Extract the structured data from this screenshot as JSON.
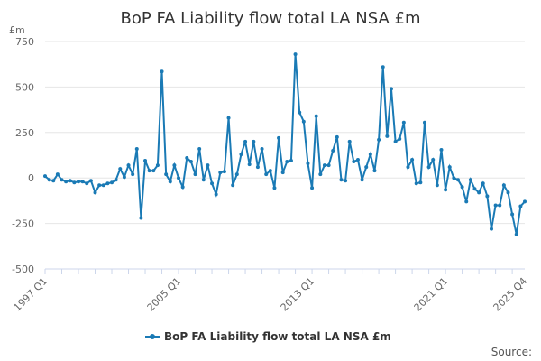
{
  "chart_data": {
    "type": "line",
    "title": "BoP FA Liability flow total LA NSA £m",
    "ylabel": "£m",
    "xlabel": "",
    "ylim": [
      -500,
      750
    ],
    "yticks": [
      -500,
      -250,
      0,
      250,
      500,
      750
    ],
    "x_tick_labels": [
      "1997 Q1",
      "2005 Q1",
      "2013 Q1",
      "2021 Q1",
      "2025 Q4"
    ],
    "x_tick_indices": [
      0,
      32,
      64,
      96,
      115
    ],
    "legend": {
      "position": "bottom",
      "label": "BoP FA Liability flow total LA NSA £m"
    },
    "source_label": "Source:",
    "grid": true,
    "color": "#1a7ab5",
    "series": [
      {
        "name": "BoP FA Liability flow total LA NSA £m",
        "values": [
          10,
          -10,
          -15,
          20,
          -10,
          -20,
          -15,
          -25,
          -20,
          -20,
          -30,
          -15,
          -80,
          -40,
          -40,
          -30,
          -25,
          -10,
          50,
          5,
          70,
          20,
          160,
          -220,
          95,
          40,
          40,
          70,
          585,
          20,
          -20,
          70,
          0,
          -50,
          110,
          90,
          20,
          160,
          -10,
          70,
          -30,
          -90,
          30,
          35,
          330,
          -40,
          20,
          130,
          200,
          75,
          200,
          60,
          160,
          20,
          40,
          -55,
          220,
          30,
          90,
          95,
          680,
          360,
          310,
          80,
          -55,
          340,
          20,
          70,
          70,
          150,
          225,
          -10,
          -15,
          200,
          90,
          100,
          -10,
          60,
          130,
          40,
          210,
          610,
          230,
          490,
          200,
          215,
          305,
          60,
          100,
          -30,
          -25,
          305,
          60,
          100,
          -40,
          155,
          -65,
          60,
          0,
          -10,
          -50,
          -130,
          -10,
          -60,
          -80,
          -30,
          -100,
          -280,
          -150,
          -150,
          -40,
          -80,
          -200,
          -310,
          -155,
          -130
        ]
      }
    ]
  }
}
